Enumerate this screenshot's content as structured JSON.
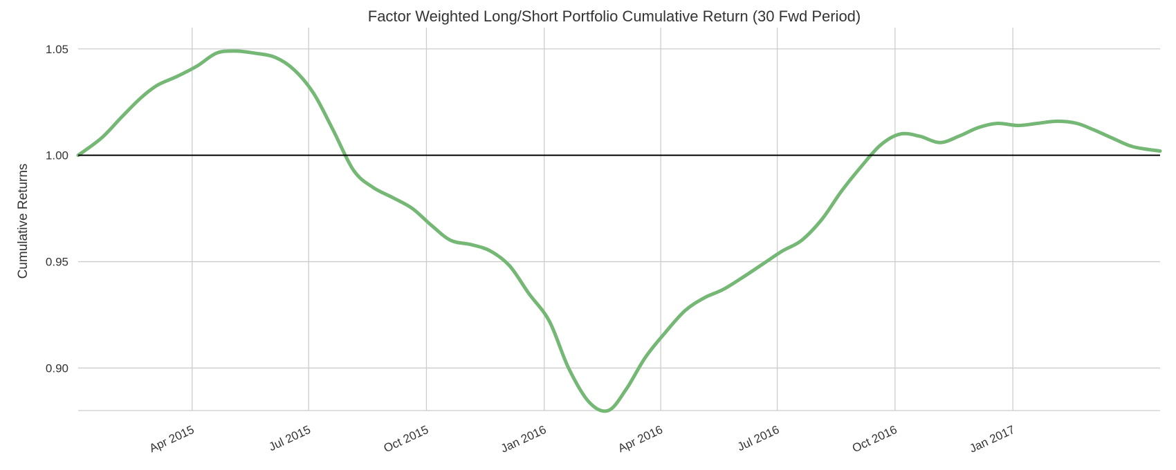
{
  "chart_data": {
    "type": "line",
    "title": "Factor Weighted Long/Short Portfolio Cumulative Return (30 Fwd Period)",
    "xlabel": "",
    "ylabel": "Cumulative Returns",
    "x_tick_labels": [
      "Apr 2015",
      "Jul 2015",
      "Oct 2015",
      "Jan 2016",
      "Apr 2016",
      "Jul 2016",
      "Oct 2016",
      "Jan 2017"
    ],
    "y_tick_labels": [
      "0.90",
      "0.95",
      "1.00",
      "1.05"
    ],
    "xlim": [
      "2015-01-02",
      "2017-04-26"
    ],
    "ylim": [
      0.88,
      1.06
    ],
    "grid": true,
    "reference_line": 1.0,
    "colors": {
      "series": "#75b775",
      "reference": "#000000",
      "grid": "#cccccc"
    },
    "series": [
      {
        "x": [
          "2015-01-02",
          "2015-01-20",
          "2015-02-05",
          "2015-02-20",
          "2015-03-05",
          "2015-03-20",
          "2015-04-05",
          "2015-04-20",
          "2015-05-05",
          "2015-05-20",
          "2015-06-05",
          "2015-06-20",
          "2015-07-05",
          "2015-07-20",
          "2015-08-05",
          "2015-08-20",
          "2015-09-05",
          "2015-09-20",
          "2015-10-05",
          "2015-10-20",
          "2015-11-05",
          "2015-11-20",
          "2015-12-05",
          "2015-12-20",
          "2016-01-05",
          "2016-01-20",
          "2016-02-05",
          "2016-02-20",
          "2016-03-05",
          "2016-03-20",
          "2016-04-05",
          "2016-04-20",
          "2016-05-05",
          "2016-05-20",
          "2016-06-05",
          "2016-06-20",
          "2016-07-05",
          "2016-07-20",
          "2016-08-05",
          "2016-08-20",
          "2016-09-05",
          "2016-09-20",
          "2016-10-05",
          "2016-10-20",
          "2016-11-05",
          "2016-11-20",
          "2016-12-05",
          "2016-12-20",
          "2017-01-05",
          "2017-01-20",
          "2017-02-05",
          "2017-02-20",
          "2017-03-05",
          "2017-03-20",
          "2017-04-05",
          "2017-04-26"
        ],
        "y": [
          1.0,
          1.008,
          1.018,
          1.027,
          1.033,
          1.037,
          1.042,
          1.048,
          1.049,
          1.048,
          1.046,
          1.04,
          1.029,
          1.012,
          0.993,
          0.985,
          0.98,
          0.975,
          0.967,
          0.96,
          0.958,
          0.955,
          0.948,
          0.935,
          0.922,
          0.9,
          0.884,
          0.88,
          0.89,
          0.905,
          0.917,
          0.927,
          0.933,
          0.937,
          0.943,
          0.949,
          0.955,
          0.96,
          0.97,
          0.983,
          0.995,
          1.005,
          1.01,
          1.009,
          1.006,
          1.009,
          1.013,
          1.015,
          1.014,
          1.015,
          1.016,
          1.015,
          1.012,
          1.008,
          1.004,
          1.002
        ]
      }
    ]
  }
}
